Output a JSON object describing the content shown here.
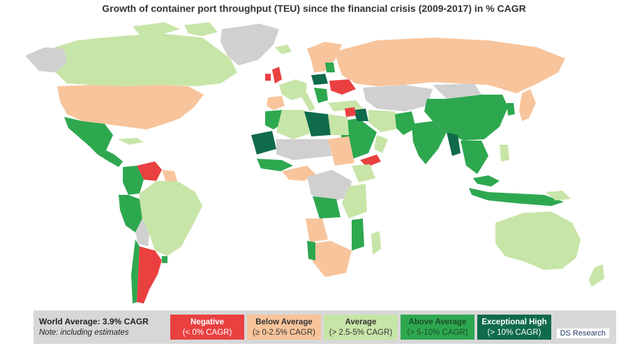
{
  "title": "Growth of container port throughput (TEU) since the financial crisis (2009-2017) in % CAGR",
  "legend": {
    "world_average": "World Average: 3.9% CAGR",
    "note": "Note: including estimates",
    "categories": [
      {
        "label": "Negative",
        "range": "(< 0% CAGR)",
        "color": "#ea4040",
        "text_color": "#ffffff"
      },
      {
        "label": "Below Average",
        "range": "(≥ 0-2.5% CAGR)",
        "color": "#f8c49b",
        "text_color": "#333333"
      },
      {
        "label": "Average",
        "range": "(> 2.5-5% CAGR)",
        "color": "#c8e5a8",
        "text_color": "#333333"
      },
      {
        "label": "Above Average",
        "range": "(> 5-10% CAGR)",
        "color": "#2ea84f",
        "text_color": "#1a4d2a"
      },
      {
        "label": "Exceptional High",
        "range": "(> 10% CAGR)",
        "color": "#0f6b4a",
        "text_color": "#ffffff"
      }
    ],
    "no_data_color": "#d0d0d0"
  },
  "credit": "DS Research"
}
